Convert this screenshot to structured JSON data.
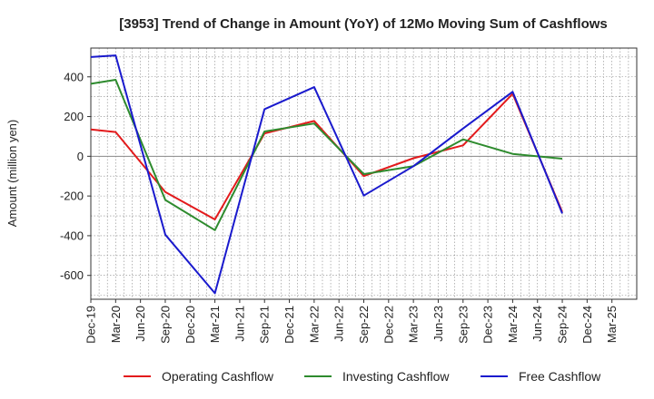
{
  "chart_data": {
    "type": "line",
    "title": "[3953]  Trend of Change in Amount (YoY) of 12Mo Moving Sum of Cashflows",
    "xlabel": "",
    "ylabel": "Amount (million yen)",
    "categories": [
      "Dec-19",
      "Mar-20",
      "Jun-20",
      "Sep-20",
      "Dec-20",
      "Mar-21",
      "Jun-21",
      "Sep-21",
      "Dec-21",
      "Mar-22",
      "Jun-22",
      "Sep-22",
      "Dec-22",
      "Mar-23",
      "Jun-23",
      "Sep-23",
      "Dec-23",
      "Mar-24",
      "Jun-24",
      "Sep-24",
      "Dec-24",
      "Mar-25"
    ],
    "yticks": [
      -600,
      -400,
      -200,
      0,
      200,
      400
    ],
    "ylim": [
      -720,
      545
    ],
    "grid": true,
    "legend_position": "bottom",
    "series": [
      {
        "name": "Operating Cashflow",
        "color": "#e31a1c",
        "values": [
          135,
          122,
          null,
          -180,
          null,
          -318,
          null,
          115,
          null,
          178,
          null,
          -100,
          null,
          -10,
          null,
          55,
          null,
          315,
          null,
          -280,
          null,
          null
        ]
      },
      {
        "name": "Investing Cashflow",
        "color": "#2e8b2e",
        "values": [
          365,
          385,
          null,
          -220,
          null,
          -372,
          null,
          125,
          null,
          165,
          null,
          -90,
          null,
          -50,
          null,
          85,
          null,
          12,
          null,
          -12,
          null,
          null
        ]
      },
      {
        "name": "Free Cashflow",
        "color": "#1a1acd",
        "values": [
          500,
          508,
          null,
          -395,
          null,
          -690,
          null,
          237,
          null,
          348,
          null,
          -198,
          null,
          -50,
          null,
          140,
          null,
          325,
          null,
          -288,
          null,
          null
        ]
      }
    ]
  }
}
